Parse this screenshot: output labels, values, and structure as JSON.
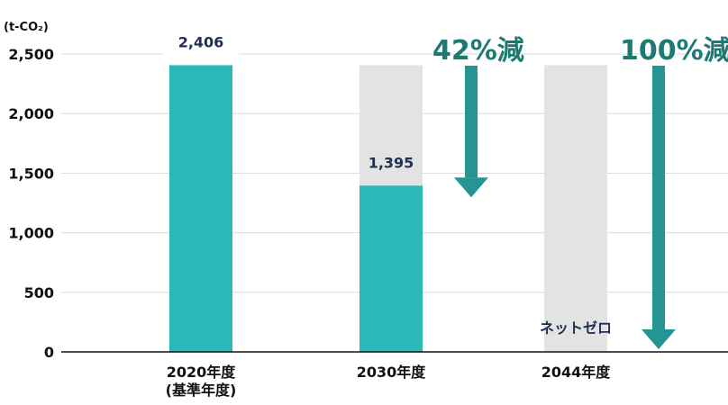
{
  "chart_data": {
    "type": "bar",
    "unit_label": "(t-CO₂)",
    "ylim": [
      0,
      2500
    ],
    "yticks": [
      0,
      500,
      1000,
      1500,
      2000,
      2500
    ],
    "ytick_labels": [
      "0",
      "500",
      "1,000",
      "1,500",
      "2,000",
      "2,500"
    ],
    "grid": true,
    "categories": [
      {
        "label_lines": [
          "2020年度",
          "(基準年度)"
        ],
        "value": 2406,
        "value_label": "2,406"
      },
      {
        "label_lines": [
          "2030年度"
        ],
        "value": 1395,
        "value_label": "1,395"
      },
      {
        "label_lines": [
          "2044年度"
        ],
        "value": 0,
        "value_label": "ネットゼロ"
      }
    ],
    "reference_value": 2406,
    "annotations": [
      {
        "text": "42%減",
        "category_index": 1,
        "target_value": 1395
      },
      {
        "text": "100%減",
        "category_index": 2,
        "target_value": 0
      }
    ],
    "colors": {
      "bar": "#2bb8b8",
      "reference_bar": "#e3e3e3",
      "arrow": "#249592",
      "reduction_text": "#1d7a72",
      "value_text": "#1f2e52",
      "axis_text": "#111111",
      "grid": "#d9d9d9",
      "axis_line": "#111111"
    }
  }
}
